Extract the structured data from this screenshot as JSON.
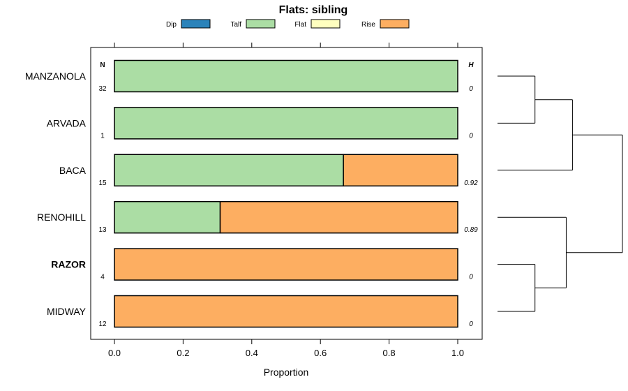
{
  "chart_data": {
    "type": "bar",
    "orientation": "horizontal",
    "stacked": true,
    "title": "Flats: sibling",
    "xlabel": "Proportion",
    "xlim": [
      0,
      1
    ],
    "xticks": [
      "0.0",
      "0.2",
      "0.4",
      "0.6",
      "0.8",
      "1.0"
    ],
    "legend": {
      "placement": "top",
      "entries": [
        {
          "name": "Dip",
          "color": "#2b83ba"
        },
        {
          "name": "Talf",
          "color": "#abdda4"
        },
        {
          "name": "Flat",
          "color": "#ffffbf"
        },
        {
          "name": "Rise",
          "color": "#fdae61"
        }
      ]
    },
    "n_header": "N",
    "h_header": "H",
    "categories": [
      "MANZANOLA",
      "ARVADA",
      "BACA",
      "RENOHILL",
      "RAZOR",
      "MIDWAY"
    ],
    "bold_category": "RAZOR",
    "n": [
      "32",
      "1",
      "15",
      "13",
      "4",
      "12"
    ],
    "h": [
      "0",
      "0",
      "0.92",
      "0.89",
      "0",
      "0"
    ],
    "series": [
      {
        "name": "Dip",
        "values": [
          0,
          0,
          0,
          0,
          0,
          0
        ]
      },
      {
        "name": "Talf",
        "values": [
          1.0,
          1.0,
          0.667,
          0.308,
          0,
          0
        ]
      },
      {
        "name": "Flat",
        "values": [
          0,
          0,
          0,
          0,
          0,
          0
        ]
      },
      {
        "name": "Rise",
        "values": [
          0,
          0,
          0.333,
          0.692,
          1.0,
          1.0
        ]
      }
    ],
    "dendrogram": {
      "merges": [
        [
          0,
          1,
          0.3
        ],
        [
          4,
          5,
          0.3
        ],
        [
          2,
          "c0",
          0.6
        ],
        [
          3,
          "c1",
          0.55
        ],
        [
          "c2",
          "c3",
          1.0
        ]
      ]
    }
  }
}
